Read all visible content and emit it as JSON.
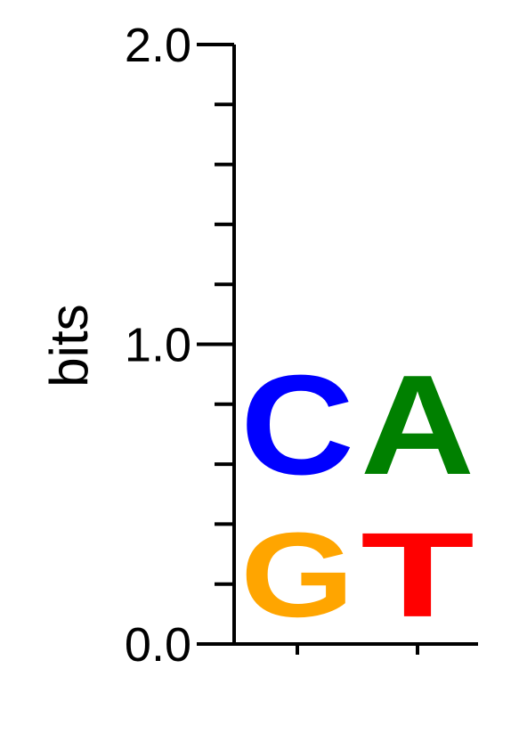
{
  "chart_data": {
    "type": "sequence-logo",
    "ylabel": "bits",
    "ylim": [
      0,
      2
    ],
    "yticks": [
      {
        "value": 0.0,
        "label": "0.0"
      },
      {
        "value": 1.0,
        "label": "1.0"
      },
      {
        "value": 2.0,
        "label": "2.0"
      }
    ],
    "minor_tick_step": 0.2,
    "positions": [
      {
        "index": 1,
        "stack": [
          {
            "letter": "G",
            "bits": 0.46,
            "color": "#FFA500"
          },
          {
            "letter": "C",
            "bits": 0.54,
            "color": "#0000FF"
          }
        ]
      },
      {
        "index": 2,
        "stack": [
          {
            "letter": "T",
            "bits": 0.46,
            "color": "#FF0000"
          },
          {
            "letter": "A",
            "bits": 0.54,
            "color": "#008000"
          }
        ]
      }
    ]
  }
}
